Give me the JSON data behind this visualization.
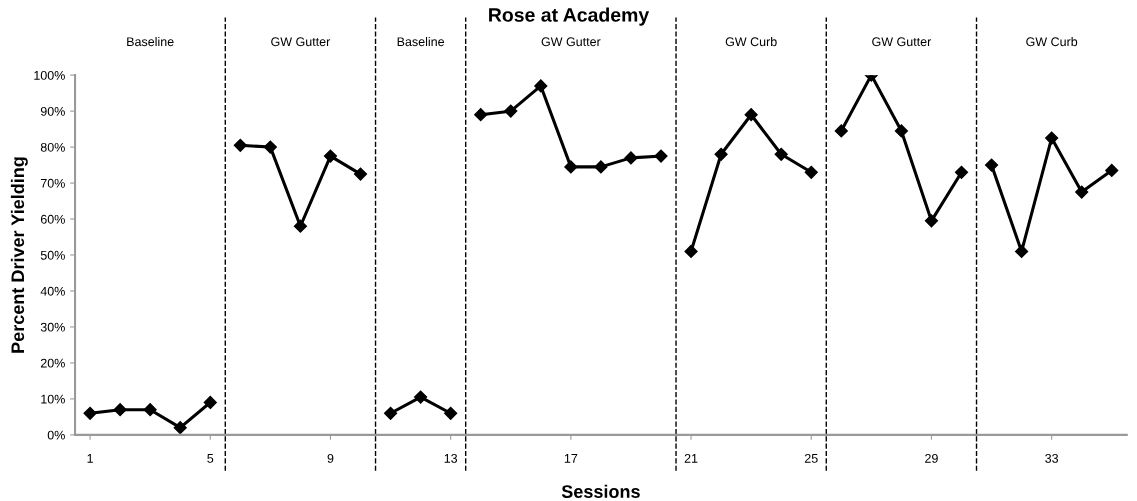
{
  "chart_data": {
    "type": "line",
    "title": "Rose at Academy",
    "xlabel": "Sessions",
    "ylabel": "Percent Driver Yielding",
    "series": [
      {
        "color": "#000000",
        "x": [
          1,
          2,
          3,
          4,
          5
        ],
        "values": [
          6,
          7,
          7,
          2,
          9
        ]
      },
      {
        "color": "#000000",
        "x": [
          6,
          7,
          8,
          9,
          10
        ],
        "values": [
          80.5,
          80,
          58,
          77.5,
          72.5
        ]
      },
      {
        "color": "#000000",
        "x": [
          11,
          12,
          13
        ],
        "values": [
          6,
          10.5,
          6
        ]
      },
      {
        "color": "#000000",
        "x": [
          14,
          15,
          16,
          17,
          18,
          19,
          20
        ],
        "values": [
          89,
          90,
          97,
          74.5,
          74.5,
          77,
          77.5
        ]
      },
      {
        "color": "#000000",
        "x": [
          21,
          22,
          23,
          24,
          25
        ],
        "values": [
          51,
          78,
          89,
          78,
          73
        ]
      },
      {
        "color": "#000000",
        "x": [
          26,
          27,
          28,
          29,
          30
        ],
        "values": [
          84.5,
          100,
          84.5,
          59.5,
          73
        ]
      },
      {
        "color": "#000000",
        "x": [
          31,
          32,
          33,
          34,
          35
        ],
        "values": [
          75,
          51,
          82.5,
          67.5,
          73.5
        ]
      }
    ],
    "xlim": [
      0.5,
      35.5
    ],
    "xticks": [
      1,
      5,
      9,
      13,
      17,
      21,
      25,
      29,
      33
    ],
    "ylim": [
      0,
      100
    ],
    "yticks": [
      {
        "value": 0,
        "label": "0%"
      },
      {
        "value": 10,
        "label": "10%"
      },
      {
        "value": 20,
        "label": "20%"
      },
      {
        "value": 30,
        "label": "30%"
      },
      {
        "value": 40,
        "label": "40%"
      },
      {
        "value": 50,
        "label": "50%"
      },
      {
        "value": 60,
        "label": "60%"
      },
      {
        "value": 70,
        "label": "70%"
      },
      {
        "value": 80,
        "label": "80%"
      },
      {
        "value": 90,
        "label": "90%"
      },
      {
        "value": 100,
        "label": "100%"
      }
    ],
    "ref_lines": [
      {
        "axis": "x",
        "value": 5.5,
        "color": "#000000",
        "line_style": "dashed"
      },
      {
        "axis": "x",
        "value": 10.5,
        "color": "#000000",
        "line_style": "dashed"
      },
      {
        "axis": "x",
        "value": 13.5,
        "color": "#000000",
        "line_style": "dashed"
      },
      {
        "axis": "x",
        "value": 20.5,
        "color": "#000000",
        "line_style": "dashed"
      },
      {
        "axis": "x",
        "value": 25.5,
        "color": "#000000",
        "line_style": "dashed"
      },
      {
        "axis": "x",
        "value": 30.5,
        "color": "#000000",
        "line_style": "dashed"
      }
    ],
    "annotations": [
      "Baseline",
      "GW Gutter",
      "Baseline",
      "GW Gutter",
      "GW Curb",
      "GW Gutter",
      "GW Curb"
    ],
    "marker": "diamond",
    "line_style": "solid",
    "grid": false,
    "legend": false
  }
}
